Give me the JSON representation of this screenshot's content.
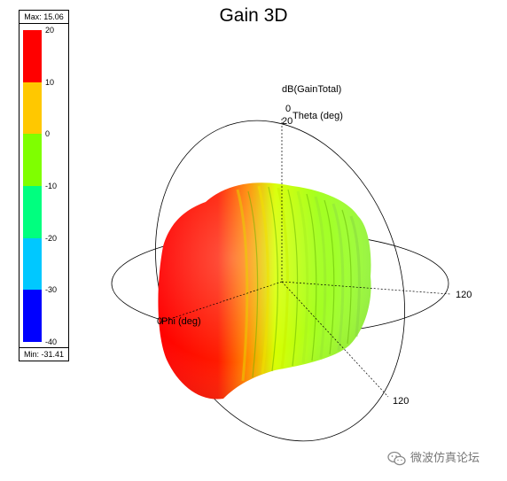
{
  "chart_data": {
    "type": "surface-3d",
    "title": "Gain 3D",
    "quantity_label": "dB(GainTotal)",
    "colorbar": {
      "max_label": "Max: 15.06",
      "min_label": "Min: -31.41",
      "ticks": [
        "20",
        "10",
        "0",
        "-10",
        "-20",
        "-30",
        "-40"
      ],
      "bands": [
        {
          "from": 10,
          "to": 20,
          "color": "#ff0000"
        },
        {
          "from": 0,
          "to": 10,
          "color": "#ffc800"
        },
        {
          "from": -10,
          "to": 0,
          "color": "#7fff00"
        },
        {
          "from": -20,
          "to": -10,
          "color": "#00ff7f"
        },
        {
          "from": -30,
          "to": -20,
          "color": "#00c8ff"
        },
        {
          "from": -40,
          "to": -30,
          "color": "#0000ff"
        }
      ]
    },
    "axes": {
      "theta_label": "Theta (deg)",
      "theta_zero": "0",
      "theta_tick": "20",
      "phi_label": "Phi (deg)",
      "phi_zero": "0",
      "axis_120_a": "120",
      "axis_120_b": "120"
    }
  },
  "watermark": {
    "text": "微波仿真论坛",
    "logo": "wechat-logo-icon"
  }
}
